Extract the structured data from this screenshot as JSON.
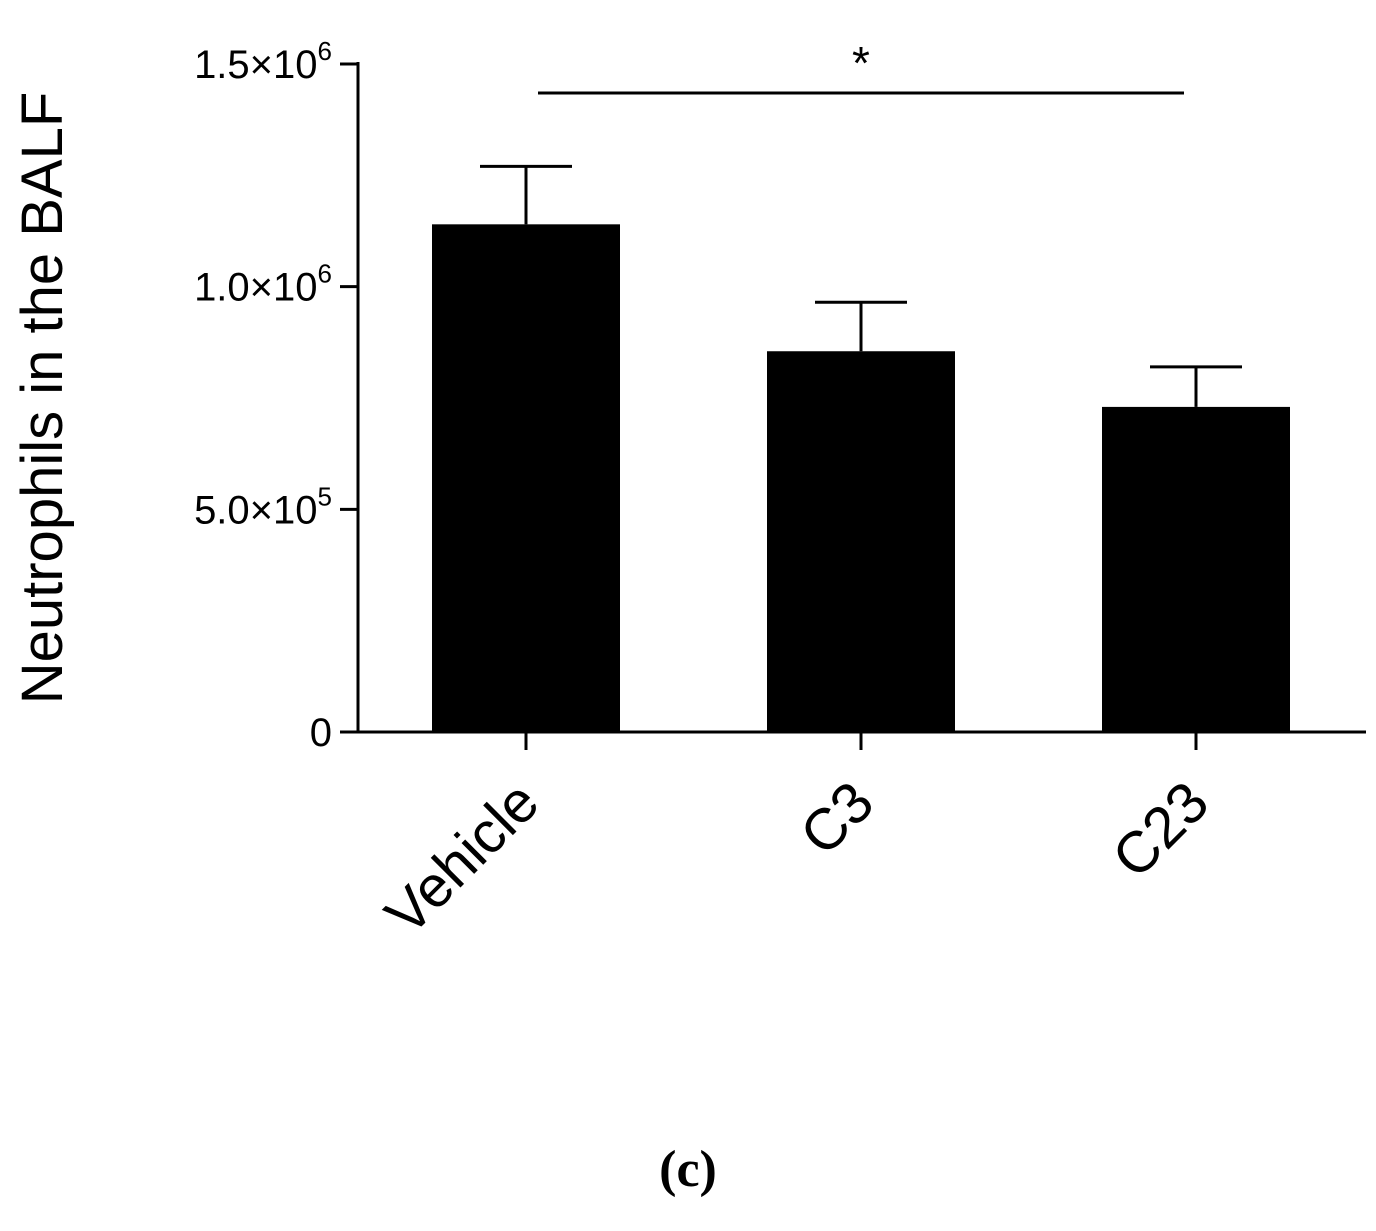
{
  "chart_data": {
    "type": "bar",
    "ylabel": "Neutrophils in the BALF",
    "xlabel": "",
    "categories": [
      "Vehicle",
      "C3",
      "C23"
    ],
    "values": [
      1140000,
      855000,
      730000
    ],
    "error_upper": [
      1270000,
      965000,
      820000
    ],
    "ylim": [
      0,
      1500000
    ],
    "yticks": [
      {
        "value": 0,
        "mantissa": "0",
        "exponent": ""
      },
      {
        "value": 500000,
        "mantissa": "5.0×10",
        "exponent": "5"
      },
      {
        "value": 1000000,
        "mantissa": "1.0×10",
        "exponent": "6"
      },
      {
        "value": 1500000,
        "mantissa": "1.5×10",
        "exponent": "6"
      }
    ],
    "bar_color": "#000000",
    "grid": false,
    "annotations": [
      {
        "text": "*",
        "from": "Vehicle",
        "to": "C23",
        "y": 1435000
      }
    ]
  },
  "panel_label": "(c)"
}
